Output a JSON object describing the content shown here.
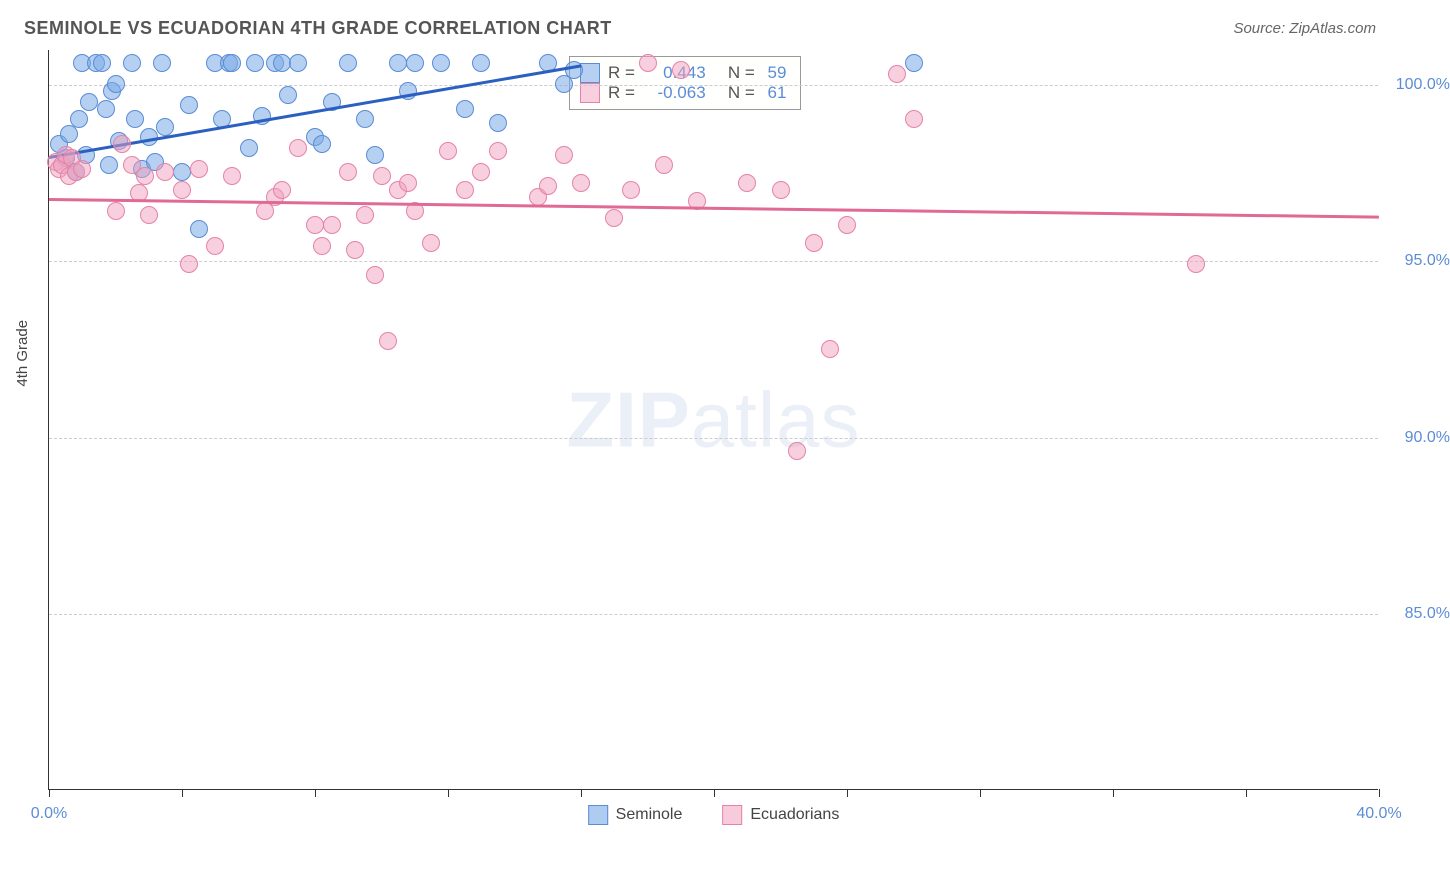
{
  "header": {
    "title": "SEMINOLE VS ECUADORIAN 4TH GRADE CORRELATION CHART",
    "source": "Source: ZipAtlas.com"
  },
  "yaxis_title": "4th Grade",
  "watermark": {
    "bold": "ZIP",
    "rest": "atlas"
  },
  "chart": {
    "type": "scatter",
    "background_color": "#ffffff",
    "grid_color": "#cccccc",
    "axis_color": "#333333",
    "xlim": [
      0,
      40
    ],
    "ylim": [
      80,
      101
    ],
    "xticks": [
      0,
      4,
      8,
      12,
      16,
      20,
      24,
      28,
      32,
      36,
      40
    ],
    "xlabels": [
      {
        "v": 0,
        "t": "0.0%"
      },
      {
        "v": 40,
        "t": "40.0%"
      }
    ],
    "ylabels": [
      {
        "v": 85,
        "t": "85.0%"
      },
      {
        "v": 90,
        "t": "90.0%"
      },
      {
        "v": 95,
        "t": "95.0%"
      },
      {
        "v": 100,
        "t": "100.0%"
      }
    ],
    "series": [
      {
        "name": "Seminole",
        "fill": "rgba(120,170,230,0.55)",
        "stroke": "#5b8cd6",
        "points": [
          [
            0.3,
            98.3
          ],
          [
            0.5,
            97.9
          ],
          [
            0.6,
            98.6
          ],
          [
            0.8,
            97.5
          ],
          [
            0.9,
            99.0
          ],
          [
            1.0,
            100.6
          ],
          [
            1.1,
            98.0
          ],
          [
            1.2,
            99.5
          ],
          [
            1.4,
            100.6
          ],
          [
            1.6,
            100.6
          ],
          [
            1.7,
            99.3
          ],
          [
            1.8,
            97.7
          ],
          [
            1.9,
            99.8
          ],
          [
            2.0,
            100.0
          ],
          [
            2.1,
            98.4
          ],
          [
            2.5,
            100.6
          ],
          [
            2.6,
            99.0
          ],
          [
            2.8,
            97.6
          ],
          [
            3.0,
            98.5
          ],
          [
            3.2,
            97.8
          ],
          [
            3.4,
            100.6
          ],
          [
            3.5,
            98.8
          ],
          [
            4.0,
            97.5
          ],
          [
            4.2,
            99.4
          ],
          [
            4.5,
            95.9
          ],
          [
            5.0,
            100.6
          ],
          [
            5.2,
            99.0
          ],
          [
            5.4,
            100.6
          ],
          [
            5.5,
            100.6
          ],
          [
            6.0,
            98.2
          ],
          [
            6.2,
            100.6
          ],
          [
            6.4,
            99.1
          ],
          [
            6.8,
            100.6
          ],
          [
            7.0,
            100.6
          ],
          [
            7.2,
            99.7
          ],
          [
            7.5,
            100.6
          ],
          [
            8.0,
            98.5
          ],
          [
            8.2,
            98.3
          ],
          [
            8.5,
            99.5
          ],
          [
            9.0,
            100.6
          ],
          [
            9.5,
            99.0
          ],
          [
            9.8,
            98.0
          ],
          [
            10.5,
            100.6
          ],
          [
            10.8,
            99.8
          ],
          [
            11.0,
            100.6
          ],
          [
            11.8,
            100.6
          ],
          [
            12.5,
            99.3
          ],
          [
            13.0,
            100.6
          ],
          [
            13.5,
            98.9
          ],
          [
            15.0,
            100.6
          ],
          [
            15.5,
            100.0
          ],
          [
            15.8,
            100.4
          ],
          [
            26.0,
            100.6
          ]
        ],
        "trend": {
          "x1": 0,
          "y1": 98.0,
          "x2": 16,
          "y2": 100.6,
          "color": "#2b5fc0",
          "width": 3
        },
        "legend": {
          "r": "0.443",
          "n": "59"
        }
      },
      {
        "name": "Ecuadorians",
        "fill": "rgba(240,160,190,0.5)",
        "stroke": "#e583a6",
        "points": [
          [
            0.2,
            97.8
          ],
          [
            0.3,
            97.6
          ],
          [
            0.4,
            97.7
          ],
          [
            0.5,
            98.0
          ],
          [
            0.6,
            97.4
          ],
          [
            0.7,
            97.9
          ],
          [
            0.8,
            97.5
          ],
          [
            1.0,
            97.6
          ],
          [
            2.0,
            96.4
          ],
          [
            2.2,
            98.3
          ],
          [
            2.5,
            97.7
          ],
          [
            2.7,
            96.9
          ],
          [
            2.9,
            97.4
          ],
          [
            3.0,
            96.3
          ],
          [
            3.5,
            97.5
          ],
          [
            4.0,
            97.0
          ],
          [
            4.2,
            94.9
          ],
          [
            4.5,
            97.6
          ],
          [
            5.0,
            95.4
          ],
          [
            5.5,
            97.4
          ],
          [
            6.5,
            96.4
          ],
          [
            6.8,
            96.8
          ],
          [
            7.0,
            97.0
          ],
          [
            7.5,
            98.2
          ],
          [
            8.0,
            96.0
          ],
          [
            8.2,
            95.4
          ],
          [
            8.5,
            96.0
          ],
          [
            9.0,
            97.5
          ],
          [
            9.2,
            95.3
          ],
          [
            9.5,
            96.3
          ],
          [
            9.8,
            94.6
          ],
          [
            10.0,
            97.4
          ],
          [
            10.2,
            92.7
          ],
          [
            10.5,
            97.0
          ],
          [
            10.8,
            97.2
          ],
          [
            11.0,
            96.4
          ],
          [
            11.5,
            95.5
          ],
          [
            12.0,
            98.1
          ],
          [
            12.5,
            97.0
          ],
          [
            13.0,
            97.5
          ],
          [
            13.5,
            98.1
          ],
          [
            14.7,
            96.8
          ],
          [
            15.0,
            97.1
          ],
          [
            15.5,
            98.0
          ],
          [
            16.0,
            97.2
          ],
          [
            17.0,
            96.2
          ],
          [
            17.5,
            97.0
          ],
          [
            18.0,
            100.6
          ],
          [
            18.5,
            97.7
          ],
          [
            19.0,
            100.4
          ],
          [
            19.5,
            96.7
          ],
          [
            21.0,
            97.2
          ],
          [
            22.0,
            97.0
          ],
          [
            22.5,
            89.6
          ],
          [
            23.0,
            95.5
          ],
          [
            23.5,
            92.5
          ],
          [
            24.0,
            96.0
          ],
          [
            25.5,
            100.3
          ],
          [
            26.0,
            99.0
          ],
          [
            34.5,
            94.9
          ]
        ],
        "trend": {
          "x1": 0,
          "y1": 96.8,
          "x2": 40,
          "y2": 96.3,
          "color": "#e06a95",
          "width": 3
        },
        "legend": {
          "r": "-0.063",
          "n": "61"
        }
      }
    ],
    "legend_box": {
      "labels": {
        "r_prefix": "R =",
        "n_prefix": "N ="
      },
      "text_color": "#5b8cd6",
      "label_color": "#555"
    },
    "bottom_legend_colors": {
      "seminole_fill": "rgba(120,170,230,0.6)",
      "seminole_stroke": "#5b8cd6",
      "ecuadorian_fill": "rgba(240,160,190,0.55)",
      "ecuadorian_stroke": "#e583a6"
    }
  }
}
